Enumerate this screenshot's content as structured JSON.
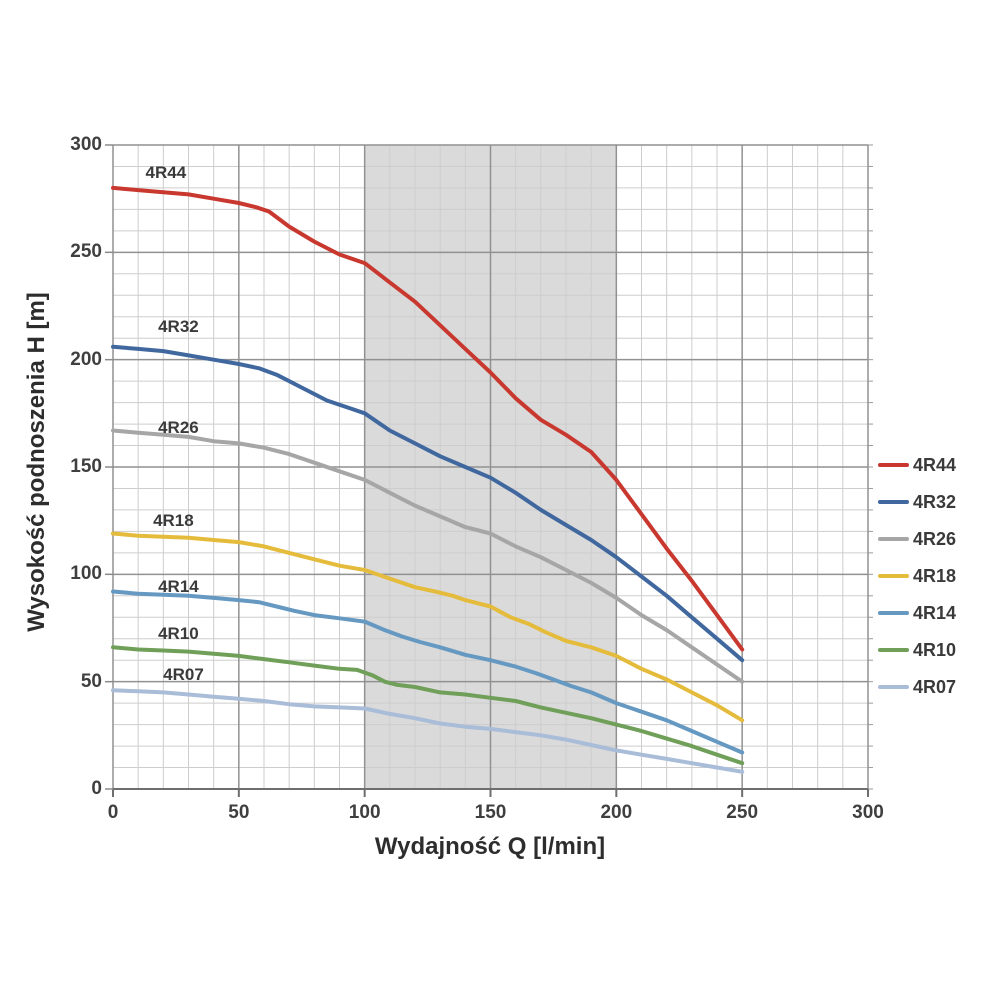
{
  "page": {
    "background": "#ffffff"
  },
  "chart_data": {
    "type": "line",
    "title": "",
    "xlabel": "Wydajność Q [l/min]",
    "ylabel": "Wysokość podnoszenia H [m]",
    "x_range": [
      0,
      300
    ],
    "y_range": [
      0,
      300
    ],
    "x_ticks": [
      0,
      50,
      100,
      150,
      200,
      250,
      300
    ],
    "y_ticks": [
      0,
      50,
      100,
      150,
      200,
      250,
      300
    ],
    "minor_grid_step": 10,
    "grid": "major+minor",
    "legend_position": "right",
    "highlight_band": {
      "x_start": 100,
      "x_end": 200,
      "color": "#dadada"
    },
    "series": [
      {
        "name": "4R44",
        "color": "#c9382f",
        "label_pos": {
          "x": 21,
          "y": 287
        },
        "points": [
          [
            0,
            280
          ],
          [
            10,
            279
          ],
          [
            20,
            278
          ],
          [
            30,
            277
          ],
          [
            40,
            275
          ],
          [
            50,
            273
          ],
          [
            57,
            271
          ],
          [
            62,
            269
          ],
          [
            70,
            262
          ],
          [
            80,
            255
          ],
          [
            90,
            249
          ],
          [
            100,
            245
          ],
          [
            110,
            236
          ],
          [
            120,
            227
          ],
          [
            130,
            216
          ],
          [
            140,
            205
          ],
          [
            150,
            194
          ],
          [
            160,
            182
          ],
          [
            170,
            172
          ],
          [
            180,
            165
          ],
          [
            190,
            157
          ],
          [
            200,
            144
          ],
          [
            210,
            128
          ],
          [
            220,
            112
          ],
          [
            230,
            97
          ],
          [
            240,
            81
          ],
          [
            250,
            65
          ]
        ]
      },
      {
        "name": "4R32",
        "color": "#40689f",
        "label_pos": {
          "x": 26,
          "y": 215
        },
        "points": [
          [
            0,
            206
          ],
          [
            10,
            205
          ],
          [
            20,
            204
          ],
          [
            30,
            202
          ],
          [
            40,
            200
          ],
          [
            50,
            198
          ],
          [
            58,
            196
          ],
          [
            65,
            193
          ],
          [
            75,
            187
          ],
          [
            85,
            181
          ],
          [
            95,
            177
          ],
          [
            100,
            175
          ],
          [
            110,
            167
          ],
          [
            120,
            161
          ],
          [
            130,
            155
          ],
          [
            140,
            150
          ],
          [
            150,
            145
          ],
          [
            160,
            138
          ],
          [
            170,
            130
          ],
          [
            180,
            123
          ],
          [
            190,
            116
          ],
          [
            200,
            108
          ],
          [
            210,
            99
          ],
          [
            220,
            90
          ],
          [
            230,
            80
          ],
          [
            240,
            70
          ],
          [
            250,
            60
          ]
        ]
      },
      {
        "name": "4R26",
        "color": "#a6a6a6",
        "label_pos": {
          "x": 26,
          "y": 168
        },
        "points": [
          [
            0,
            167
          ],
          [
            10,
            166
          ],
          [
            20,
            165
          ],
          [
            30,
            164
          ],
          [
            40,
            162
          ],
          [
            50,
            161
          ],
          [
            60,
            159
          ],
          [
            70,
            156
          ],
          [
            80,
            152
          ],
          [
            90,
            148
          ],
          [
            100,
            144
          ],
          [
            110,
            138
          ],
          [
            120,
            132
          ],
          [
            130,
            127
          ],
          [
            140,
            122
          ],
          [
            150,
            119
          ],
          [
            160,
            113
          ],
          [
            170,
            108
          ],
          [
            180,
            102
          ],
          [
            190,
            96
          ],
          [
            200,
            89
          ],
          [
            210,
            81
          ],
          [
            220,
            74
          ],
          [
            230,
            66
          ],
          [
            240,
            58
          ],
          [
            250,
            50
          ]
        ]
      },
      {
        "name": "4R18",
        "color": "#e5bb3c",
        "label_pos": {
          "x": 24,
          "y": 125
        },
        "points": [
          [
            0,
            119
          ],
          [
            10,
            118
          ],
          [
            20,
            117.5
          ],
          [
            30,
            117
          ],
          [
            40,
            116
          ],
          [
            50,
            115
          ],
          [
            60,
            113
          ],
          [
            70,
            110
          ],
          [
            80,
            107
          ],
          [
            90,
            104
          ],
          [
            100,
            102
          ],
          [
            110,
            98
          ],
          [
            120,
            94
          ],
          [
            128,
            92
          ],
          [
            135,
            90
          ],
          [
            140,
            88
          ],
          [
            150,
            85
          ],
          [
            158,
            80
          ],
          [
            165,
            77
          ],
          [
            172,
            73
          ],
          [
            180,
            69
          ],
          [
            190,
            66
          ],
          [
            200,
            62
          ],
          [
            210,
            56
          ],
          [
            220,
            51
          ],
          [
            230,
            45
          ],
          [
            240,
            39
          ],
          [
            250,
            32
          ]
        ]
      },
      {
        "name": "4R14",
        "color": "#6699c2",
        "label_pos": {
          "x": 26,
          "y": 94
        },
        "points": [
          [
            0,
            92
          ],
          [
            10,
            91
          ],
          [
            20,
            90.5
          ],
          [
            30,
            90
          ],
          [
            40,
            89
          ],
          [
            50,
            88
          ],
          [
            58,
            87
          ],
          [
            65,
            85
          ],
          [
            72,
            83
          ],
          [
            80,
            81
          ],
          [
            90,
            79.5
          ],
          [
            100,
            78
          ],
          [
            108,
            74
          ],
          [
            115,
            71
          ],
          [
            122,
            68.5
          ],
          [
            130,
            66
          ],
          [
            140,
            62.5
          ],
          [
            150,
            60
          ],
          [
            160,
            57
          ],
          [
            168,
            54
          ],
          [
            175,
            51
          ],
          [
            182,
            48
          ],
          [
            190,
            45
          ],
          [
            200,
            40
          ],
          [
            210,
            36
          ],
          [
            220,
            32
          ],
          [
            230,
            27
          ],
          [
            240,
            22
          ],
          [
            250,
            17
          ]
        ]
      },
      {
        "name": "4R10",
        "color": "#6f9f58",
        "label_pos": {
          "x": 26,
          "y": 72
        },
        "points": [
          [
            0,
            66
          ],
          [
            10,
            65
          ],
          [
            20,
            64.5
          ],
          [
            30,
            64
          ],
          [
            40,
            63
          ],
          [
            50,
            62
          ],
          [
            60,
            60.5
          ],
          [
            70,
            59
          ],
          [
            80,
            57.5
          ],
          [
            90,
            56
          ],
          [
            97,
            55.5
          ],
          [
            103,
            53
          ],
          [
            108,
            50
          ],
          [
            113,
            48.5
          ],
          [
            120,
            47.5
          ],
          [
            130,
            45
          ],
          [
            140,
            44
          ],
          [
            150,
            42.5
          ],
          [
            160,
            41
          ],
          [
            170,
            38
          ],
          [
            180,
            35.5
          ],
          [
            190,
            33
          ],
          [
            200,
            30
          ],
          [
            210,
            27
          ],
          [
            220,
            23.5
          ],
          [
            230,
            20
          ],
          [
            240,
            16
          ],
          [
            250,
            12
          ]
        ]
      },
      {
        "name": "4R07",
        "color": "#a9bcd8",
        "label_pos": {
          "x": 28,
          "y": 53
        },
        "points": [
          [
            0,
            46
          ],
          [
            10,
            45.5
          ],
          [
            20,
            45
          ],
          [
            30,
            44
          ],
          [
            40,
            43
          ],
          [
            50,
            42
          ],
          [
            60,
            41
          ],
          [
            70,
            39.5
          ],
          [
            80,
            38.5
          ],
          [
            90,
            38
          ],
          [
            100,
            37.5
          ],
          [
            110,
            35
          ],
          [
            120,
            33
          ],
          [
            130,
            30.5
          ],
          [
            140,
            29
          ],
          [
            150,
            28
          ],
          [
            160,
            26.5
          ],
          [
            170,
            25
          ],
          [
            180,
            23
          ],
          [
            190,
            20.5
          ],
          [
            200,
            18
          ],
          [
            210,
            16
          ],
          [
            220,
            14
          ],
          [
            230,
            12
          ],
          [
            240,
            10
          ],
          [
            250,
            8
          ]
        ]
      }
    ]
  }
}
